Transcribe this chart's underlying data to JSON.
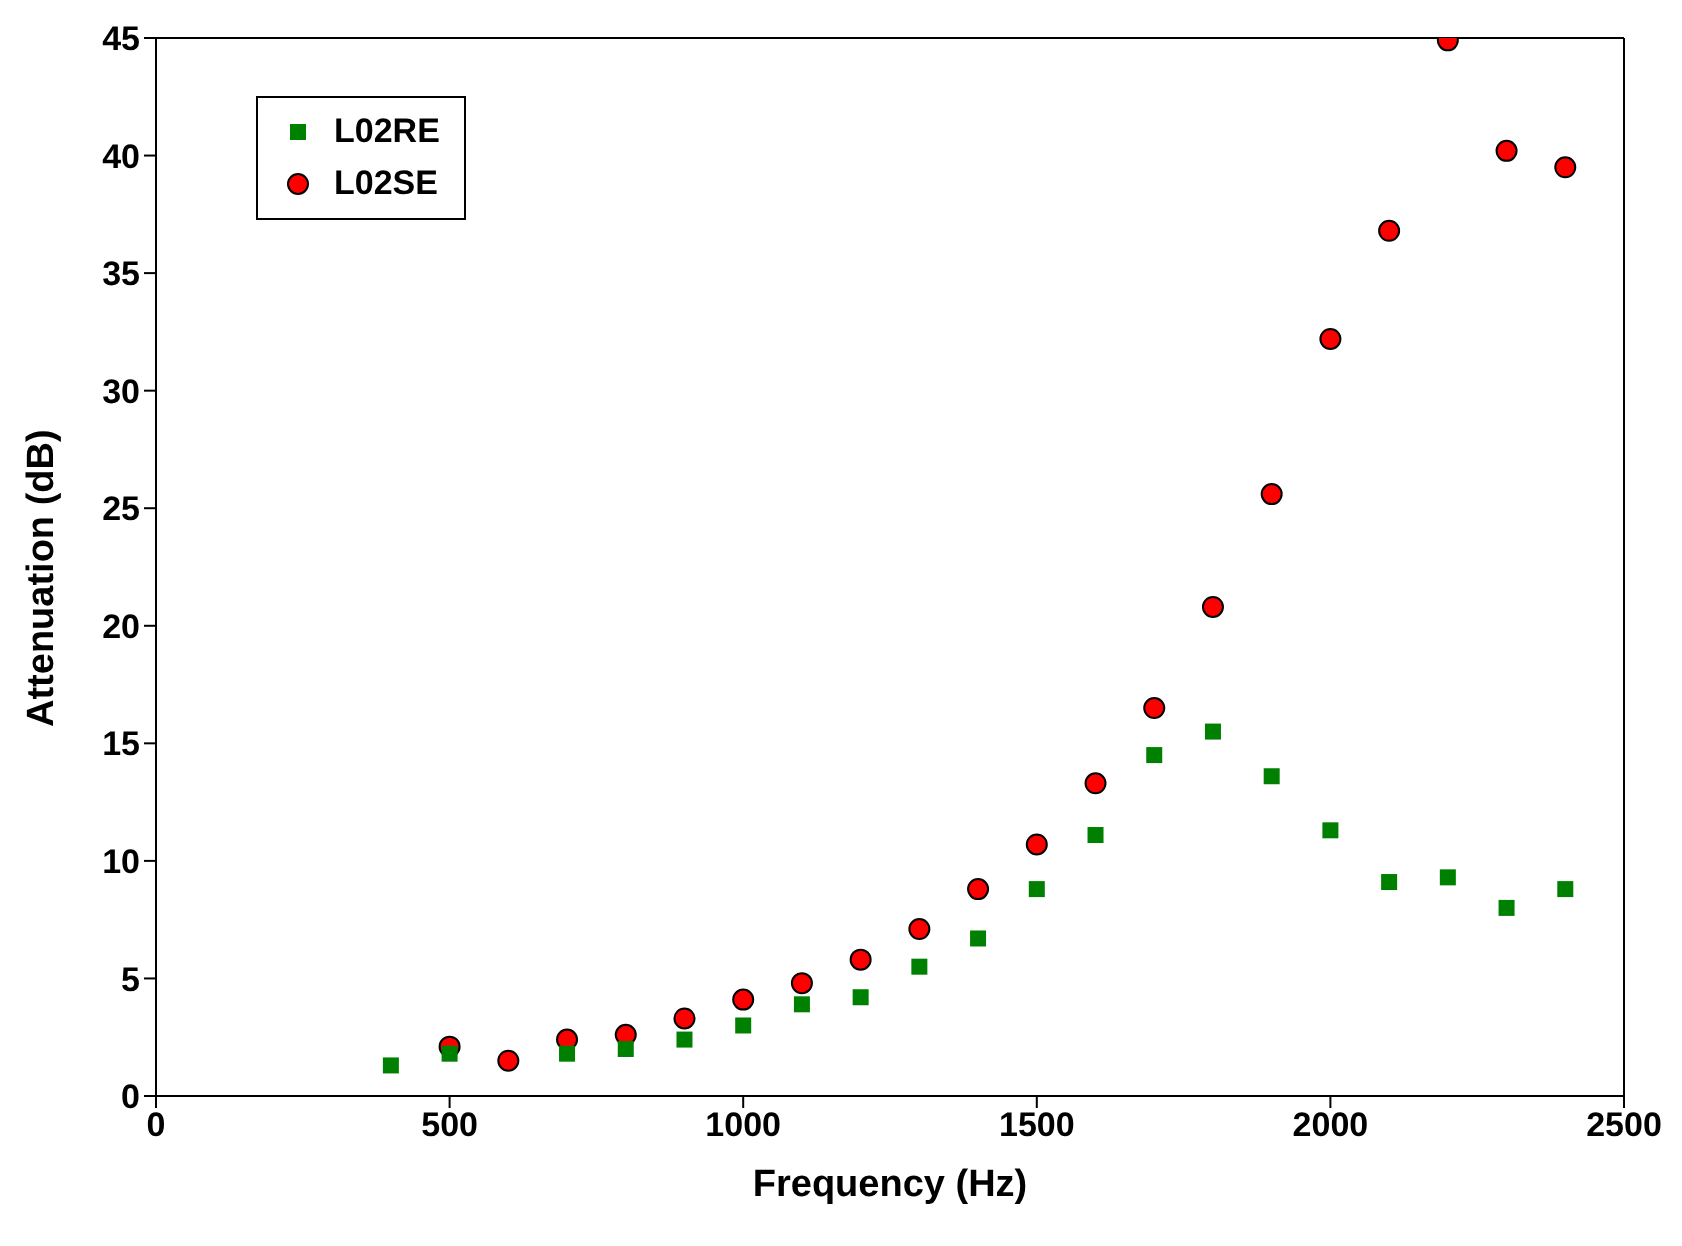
{
  "chart_data": {
    "type": "scatter",
    "xlabel": "Frequency (Hz)",
    "ylabel": "Attenuation (dB)",
    "x": [
      400,
      500,
      600,
      700,
      800,
      900,
      1000,
      1100,
      1200,
      1300,
      1400,
      1500,
      1600,
      1700,
      1800,
      1900,
      2000,
      2100,
      2200,
      2300,
      2400
    ],
    "series": [
      {
        "name": "L02RE",
        "color": "#008000",
        "marker": "square",
        "values": [
          1.3,
          1.8,
          null,
          1.8,
          2.0,
          2.4,
          3.0,
          3.9,
          4.2,
          5.5,
          6.7,
          8.8,
          11.1,
          14.5,
          15.5,
          13.6,
          11.3,
          9.1,
          9.3,
          8.0,
          8.8
        ]
      },
      {
        "name": "L02SE",
        "color": "#ff0000",
        "marker": "circle",
        "values": [
          null,
          2.1,
          1.5,
          2.4,
          2.6,
          3.3,
          4.1,
          4.8,
          5.8,
          7.1,
          8.8,
          10.7,
          13.3,
          16.5,
          20.8,
          25.6,
          32.2,
          36.8,
          44.9,
          40.2,
          39.5
        ]
      }
    ],
    "xlim": [
      0,
      2500
    ],
    "xticks": [
      0,
      500,
      1000,
      1500,
      2000,
      2500
    ],
    "ylim": [
      0,
      45
    ],
    "yticks": [
      0,
      5,
      10,
      15,
      20,
      25,
      30,
      35,
      40,
      45
    ],
    "grid": false,
    "legend": "top left"
  }
}
